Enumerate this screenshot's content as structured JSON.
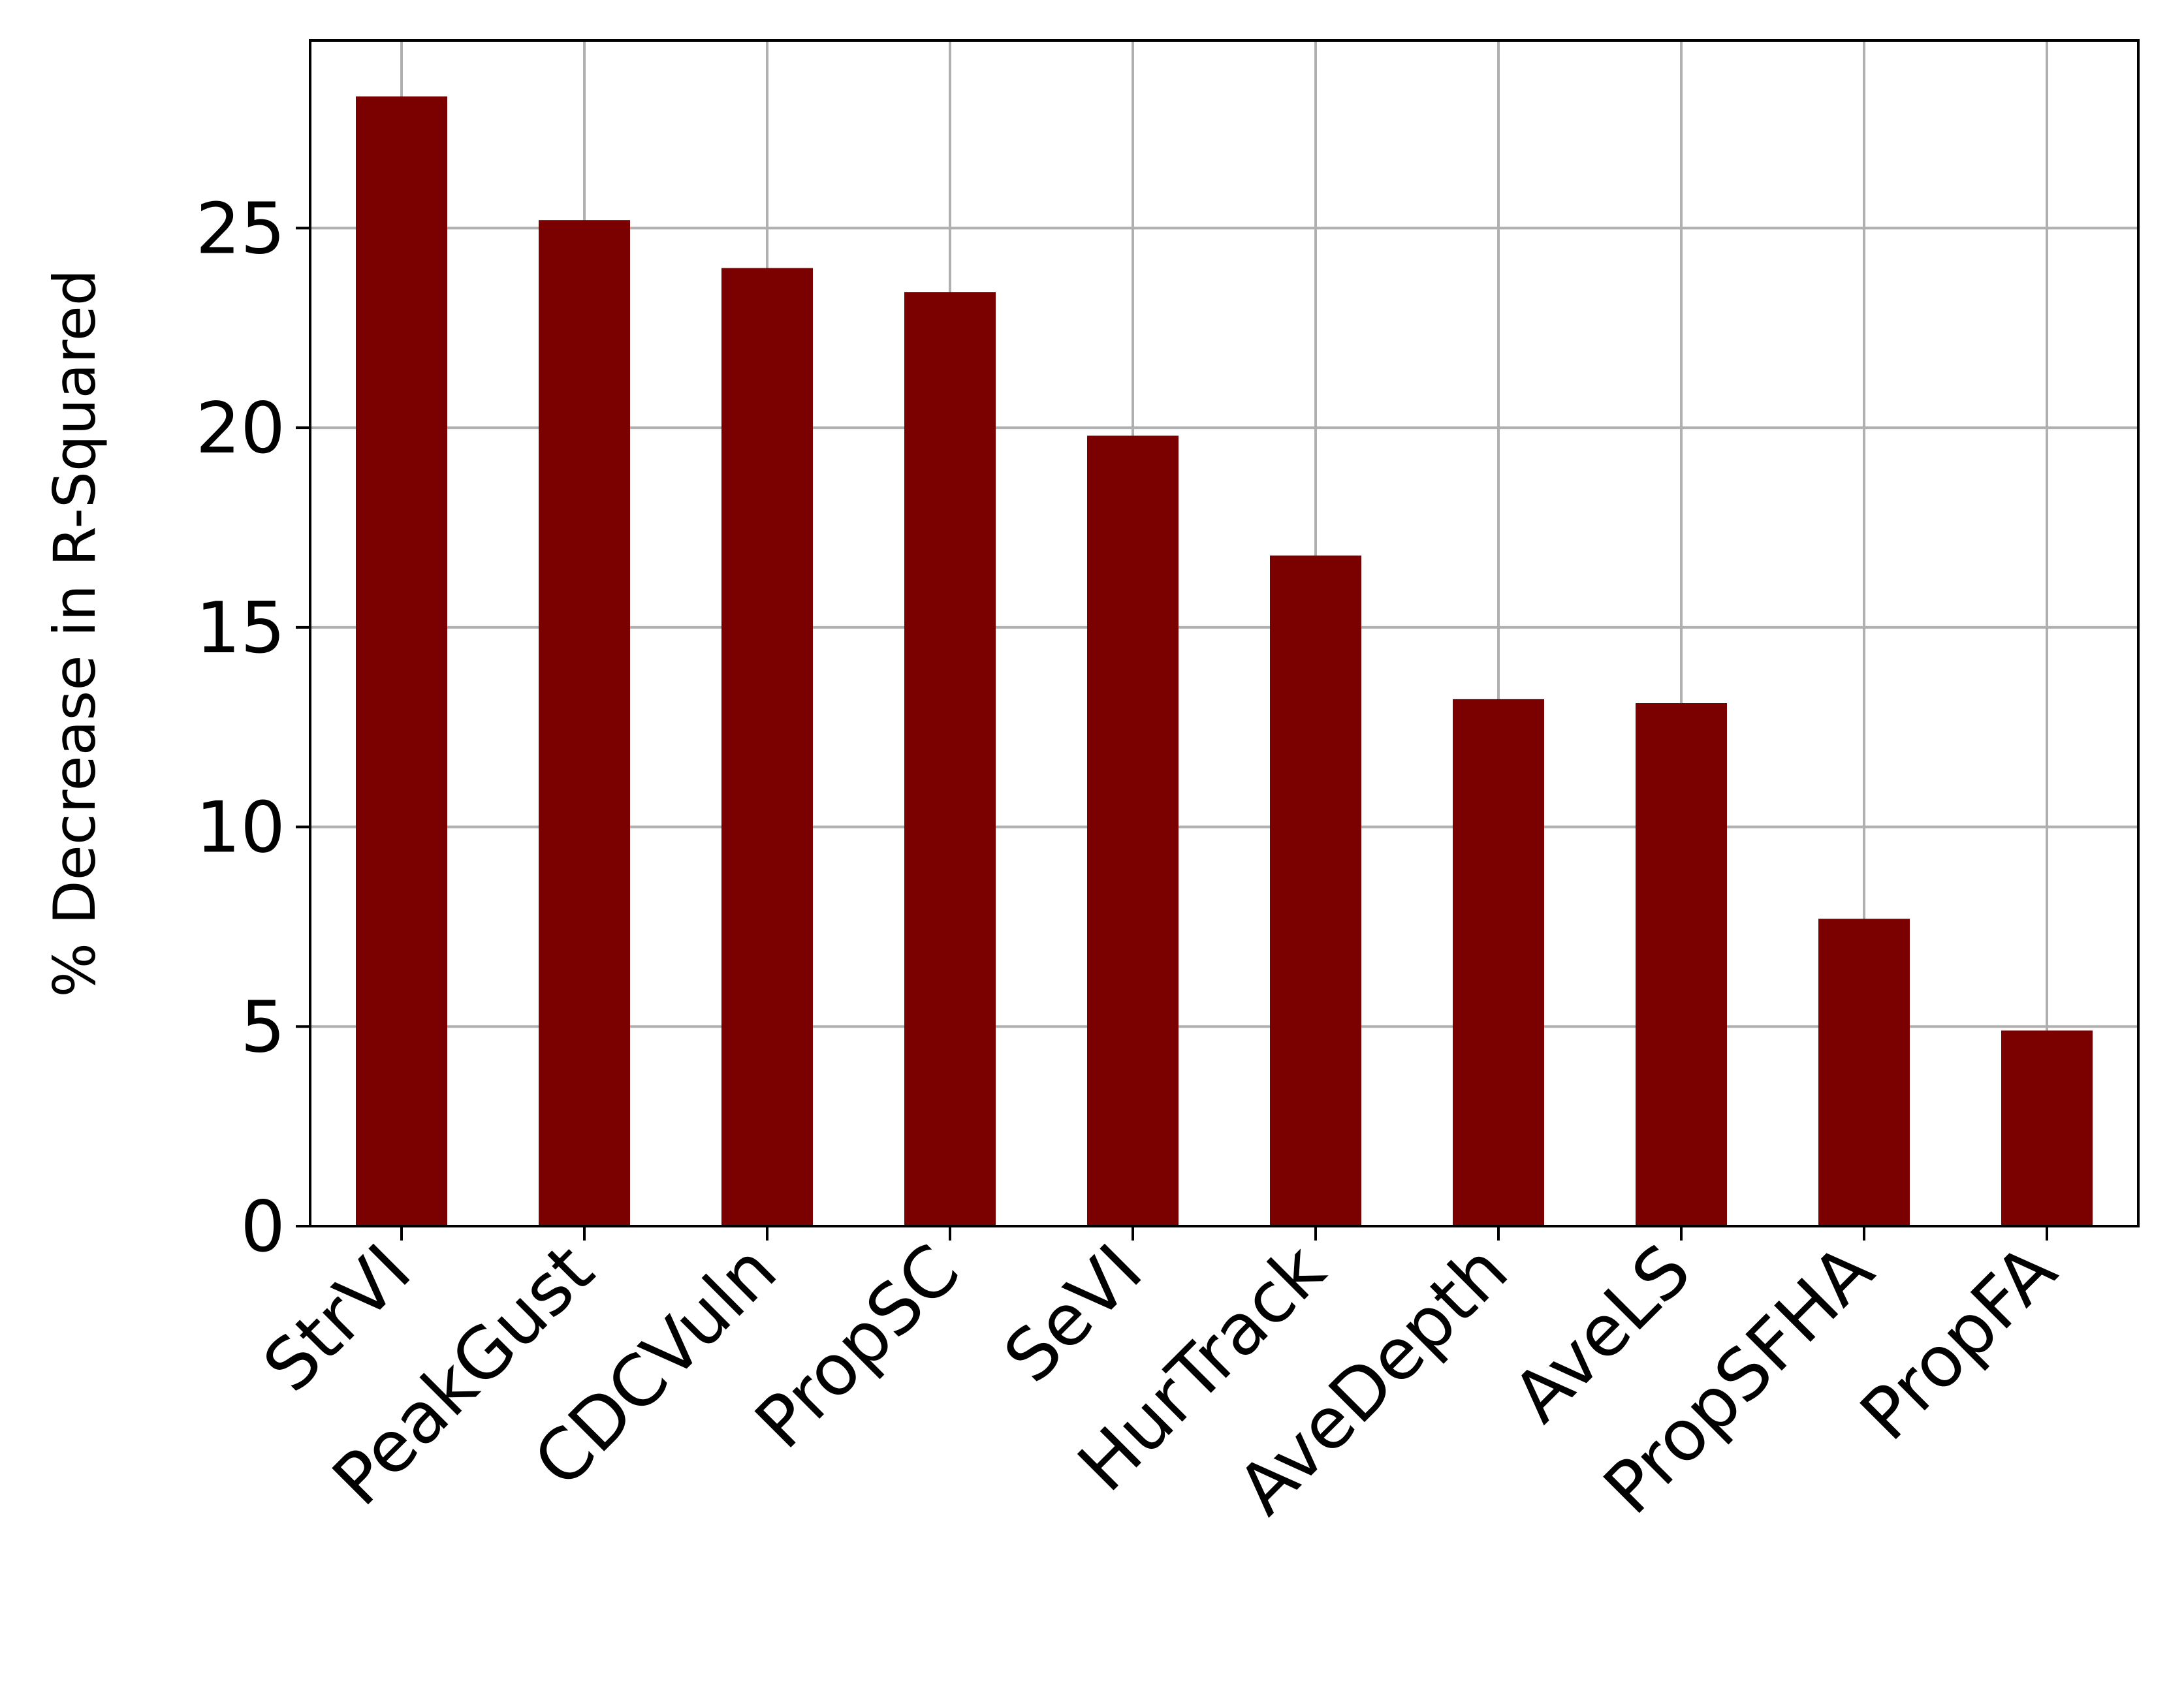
{
  "chart_data": {
    "type": "bar",
    "title": "",
    "xlabel": "",
    "ylabel": "% Decrease in R-Squared",
    "categories": [
      "StrVI",
      "PeakGust",
      "CDCVuln",
      "PropSC",
      "SeVI",
      "HurTrack",
      "AveDepth",
      "AveLS",
      "PropSFHA",
      "PropFA"
    ],
    "values": [
      28.3,
      25.2,
      24.0,
      23.4,
      19.8,
      16.8,
      13.2,
      13.1,
      7.7,
      4.9
    ],
    "ylim": [
      0,
      29.7
    ],
    "yticks": [
      "0",
      "5",
      "10",
      "15",
      "20",
      "25"
    ],
    "grid": true,
    "legend": "none",
    "colors": {
      "bar": "#7b0000",
      "grid": "#b0b0b0",
      "axis": "#000000"
    }
  }
}
